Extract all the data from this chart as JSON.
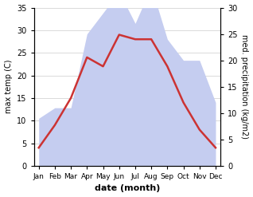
{
  "months": [
    "Jan",
    "Feb",
    "Mar",
    "Apr",
    "May",
    "Jun",
    "Jul",
    "Aug",
    "Sep",
    "Oct",
    "Nov",
    "Dec"
  ],
  "temperature": [
    4,
    9,
    15,
    24,
    22,
    29,
    28,
    28,
    22,
    14,
    8,
    4
  ],
  "precipitation": [
    9,
    11,
    11,
    25,
    29,
    33,
    27,
    34,
    24,
    20,
    20,
    12
  ],
  "temp_color": "#cc3333",
  "precip_color_fill": "#c5cdf0",
  "ylabel_left": "max temp (C)",
  "ylabel_right": "med. precipitation (kg/m2)",
  "xlabel": "date (month)",
  "ylim_left": [
    0,
    35
  ],
  "ylim_right": [
    0,
    30
  ],
  "yticks_left": [
    0,
    5,
    10,
    15,
    20,
    25,
    30,
    35
  ],
  "yticks_right": [
    0,
    5,
    10,
    15,
    20,
    25,
    30
  ],
  "grid_color": "#cccccc"
}
